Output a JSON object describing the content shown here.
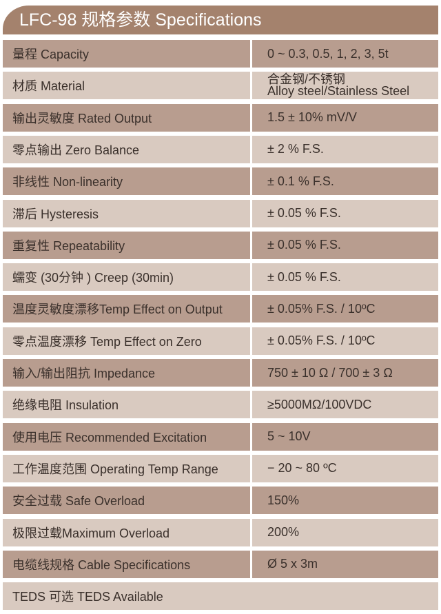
{
  "title": "LFC-98 规格参数 Specifications",
  "colors": {
    "header": "#a4826d",
    "row_dark": "#b89d8f",
    "row_light": "#d9cac0"
  },
  "rows": [
    {
      "label": "量程 Capacity",
      "value": "0 ~ 0.3, 0.5, 1, 2, 3, 5t"
    },
    {
      "label": "材质 Material",
      "value": "合金钢/不锈钢",
      "value2": "Alloy steel/Stainless Steel"
    },
    {
      "label": "输出灵敏度 Rated Output",
      "value": "1.5 ± 10% mV/V"
    },
    {
      "label": "零点输出  Zero Balance",
      "value": "± 2 % F.S."
    },
    {
      "label": "非线性 Non-linearity",
      "value": "± 0.1 % F.S."
    },
    {
      "label": "滞后 Hysteresis",
      "value": "± 0.05 % F.S."
    },
    {
      "label": "重复性 Repeatability",
      "value": "± 0.05 % F.S."
    },
    {
      "label": "蠕变 (30分钟 ) Creep (30min)",
      "value": "± 0.05 % F.S."
    },
    {
      "label": "温度灵敏度漂移Temp Effect on Output",
      "value": "± 0.05% F.S. / 10ºC"
    },
    {
      "label": "零点温度漂移 Temp Effect on Zero",
      "value": "± 0.05% F.S. / 10ºC"
    },
    {
      "label": "输入/输出阻抗 Impedance",
      "value": "750 ± 10 Ω / 700 ± 3 Ω"
    },
    {
      "label": "绝缘电阻  Insulation",
      "value": "≥5000MΩ/100VDC"
    },
    {
      "label": "使用电压 Recommended Excitation",
      "value": "5 ~ 10V"
    },
    {
      "label": "工作温度范围 Operating Temp  Range",
      "value": "− 20 ~ 80 ºC"
    },
    {
      "label": "安全过载 Safe Overload",
      "value": "150%"
    },
    {
      "label": "极限过载Maximum Overload",
      "value": "200%"
    },
    {
      "label": "电缆线规格 Cable Specifications",
      "value": "Ø 5 x 3m"
    },
    {
      "label": "TEDS 可选 TEDS Available"
    }
  ]
}
